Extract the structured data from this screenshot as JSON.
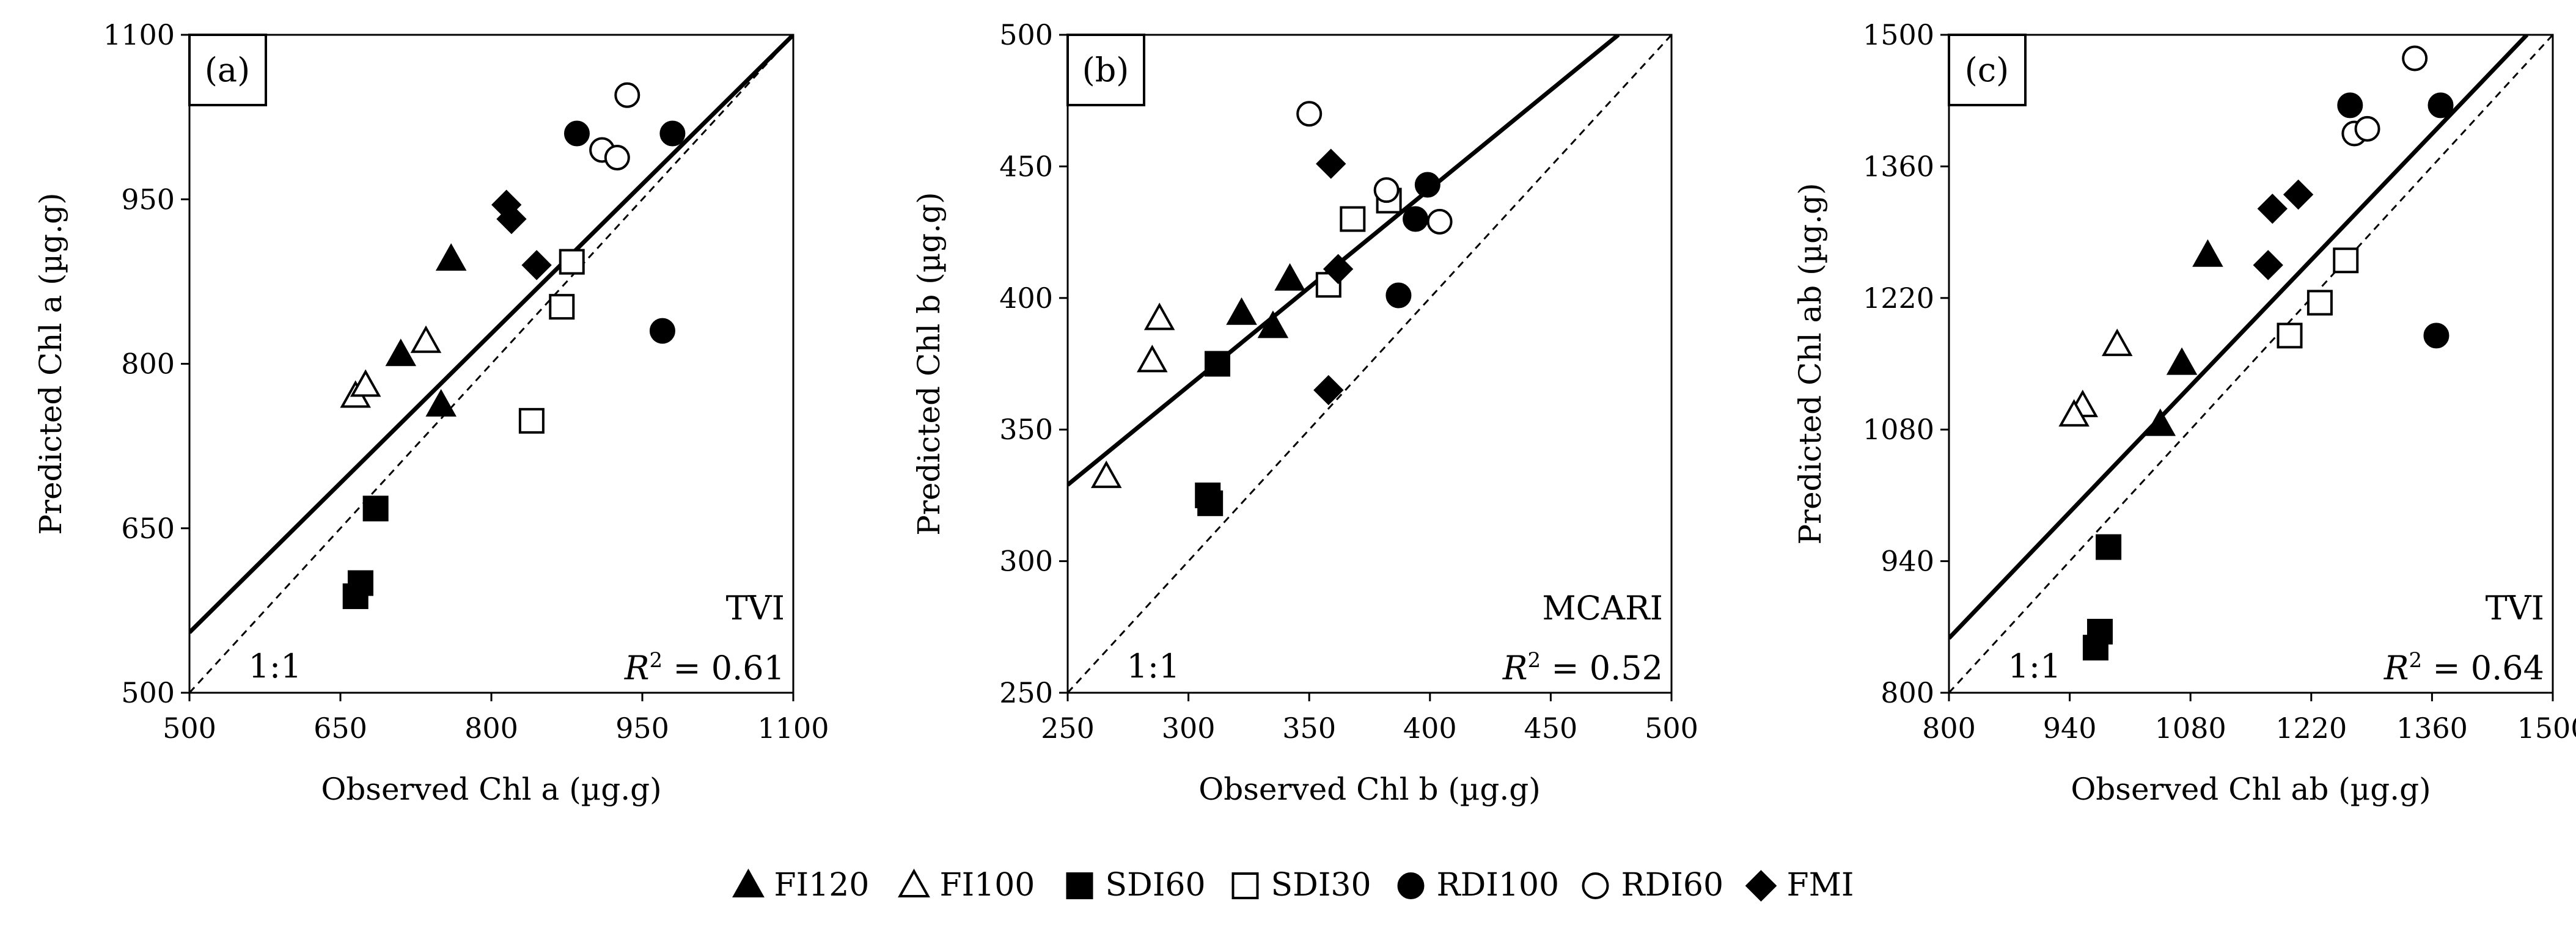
{
  "figure": {
    "legend": [
      {
        "key": "FI120",
        "label": "FI120",
        "marker": "triangle",
        "filled": true
      },
      {
        "key": "FI100",
        "label": "FI100",
        "marker": "triangle",
        "filled": false
      },
      {
        "key": "SDI60",
        "label": "SDI60",
        "marker": "square",
        "filled": true
      },
      {
        "key": "SDI30",
        "label": "SDI30",
        "marker": "square",
        "filled": false
      },
      {
        "key": "RDI100",
        "label": "RDI100",
        "marker": "circle",
        "filled": true
      },
      {
        "key": "RDI60",
        "label": "RDI60",
        "marker": "circle",
        "filled": false
      },
      {
        "key": "FMI",
        "label": "FMI",
        "marker": "diamond",
        "filled": true
      }
    ],
    "colors": {
      "ink": "#000000",
      "background": "#ffffff"
    }
  },
  "chart_data": [
    {
      "type": "scatter",
      "panel_label": "(a)",
      "index_name": "TVI",
      "r2_label": "R",
      "r2_value": " = 0.61",
      "one_to_one_label": "1:1",
      "xlabel": "Observed Chl a (µg.g)",
      "ylabel": "Predicted Chl a (µg.g)",
      "xlim": [
        500,
        1100
      ],
      "ylim": [
        500,
        1100
      ],
      "xticks": [
        500,
        650,
        800,
        950,
        1100
      ],
      "yticks": [
        500,
        650,
        800,
        950,
        1100
      ],
      "regression_line": {
        "x1": 500,
        "y1": 555,
        "x2": 1100,
        "y2": 1100
      },
      "series": [
        {
          "name": "FI120",
          "points": [
            [
              760,
              895
            ],
            [
              710,
              808
            ],
            [
              750,
              762
            ]
          ]
        },
        {
          "name": "FI100",
          "points": [
            [
              665,
              770
            ],
            [
              675,
              780
            ],
            [
              735,
              820
            ]
          ]
        },
        {
          "name": "SDI60",
          "points": [
            [
              685,
              668
            ],
            [
              670,
              600
            ],
            [
              665,
              588
            ]
          ]
        },
        {
          "name": "SDI30",
          "points": [
            [
              880,
              893
            ],
            [
              870,
              852
            ],
            [
              840,
              748
            ]
          ]
        },
        {
          "name": "RDI100",
          "points": [
            [
              885,
              1010
            ],
            [
              980,
              1010
            ],
            [
              970,
              830
            ]
          ]
        },
        {
          "name": "RDI60",
          "points": [
            [
              935,
              1045
            ],
            [
              910,
              995
            ],
            [
              925,
              988
            ]
          ]
        },
        {
          "name": "FMI",
          "points": [
            [
              815,
              945
            ],
            [
              820,
              932
            ],
            [
              845,
              890
            ]
          ]
        }
      ]
    },
    {
      "type": "scatter",
      "panel_label": "(b)",
      "index_name": "MCARI",
      "r2_label": "R",
      "r2_value": " = 0.52",
      "one_to_one_label": "1:1",
      "xlabel": "Observed Chl b (µg.g)",
      "ylabel": "Predicted Chl b (µg.g)",
      "xlim": [
        250,
        500
      ],
      "ylim": [
        250,
        500
      ],
      "xticks": [
        250,
        300,
        350,
        400,
        450,
        500
      ],
      "yticks": [
        250,
        300,
        350,
        400,
        450,
        500
      ],
      "regression_line": {
        "x1": 250,
        "y1": 329,
        "x2": 478,
        "y2": 500
      },
      "series": [
        {
          "name": "FI120",
          "points": [
            [
              342,
              407
            ],
            [
              322,
              394
            ],
            [
              335,
              389
            ]
          ]
        },
        {
          "name": "FI100",
          "points": [
            [
              288,
              392
            ],
            [
              285,
              376
            ],
            [
              266,
              332
            ]
          ]
        },
        {
          "name": "SDI60",
          "points": [
            [
              312,
              375
            ],
            [
              308,
              325
            ],
            [
              309,
              322
            ]
          ]
        },
        {
          "name": "SDI30",
          "points": [
            [
              368,
              430
            ],
            [
              383,
              437
            ],
            [
              358,
              405
            ]
          ]
        },
        {
          "name": "RDI100",
          "points": [
            [
              399,
              443
            ],
            [
              394,
              430
            ],
            [
              387,
              401
            ]
          ]
        },
        {
          "name": "RDI60",
          "points": [
            [
              350,
              470
            ],
            [
              382,
              441
            ],
            [
              404,
              429
            ]
          ]
        },
        {
          "name": "FMI",
          "points": [
            [
              359,
              451
            ],
            [
              362,
              411
            ],
            [
              358,
              365
            ]
          ]
        }
      ]
    },
    {
      "type": "scatter",
      "panel_label": "(c)",
      "index_name": "TVI",
      "r2_label": "R",
      "r2_value": " = 0.64",
      "one_to_one_label": "1:1",
      "xlabel": "Observed Chl ab (µg.g)",
      "ylabel": "Predicted Chl ab (µg.g)",
      "xlim": [
        800,
        1500
      ],
      "ylim": [
        800,
        1500
      ],
      "xticks": [
        800,
        940,
        1080,
        1220,
        1360,
        1500
      ],
      "yticks": [
        800,
        940,
        1080,
        1220,
        1360,
        1500
      ],
      "regression_line": {
        "x1": 800,
        "y1": 858,
        "x2": 1470,
        "y2": 1500
      },
      "series": [
        {
          "name": "FI120",
          "points": [
            [
              1100,
              1265
            ],
            [
              1070,
              1150
            ],
            [
              1045,
              1085
            ]
          ]
        },
        {
          "name": "FI100",
          "points": [
            [
              995,
              1170
            ],
            [
              955,
              1105
            ],
            [
              945,
              1095
            ]
          ]
        },
        {
          "name": "SDI60",
          "points": [
            [
              985,
              955
            ],
            [
              975,
              865
            ],
            [
              970,
              848
            ]
          ]
        },
        {
          "name": "SDI30",
          "points": [
            [
              1260,
              1260
            ],
            [
              1230,
              1215
            ],
            [
              1195,
              1180
            ]
          ]
        },
        {
          "name": "RDI100",
          "points": [
            [
              1265,
              1425
            ],
            [
              1370,
              1425
            ],
            [
              1365,
              1180
            ]
          ]
        },
        {
          "name": "RDI60",
          "points": [
            [
              1340,
              1475
            ],
            [
              1270,
              1395
            ],
            [
              1285,
              1400
            ]
          ]
        },
        {
          "name": "FMI",
          "points": [
            [
              1175,
              1315
            ],
            [
              1205,
              1330
            ],
            [
              1170,
              1255
            ]
          ]
        }
      ]
    }
  ]
}
